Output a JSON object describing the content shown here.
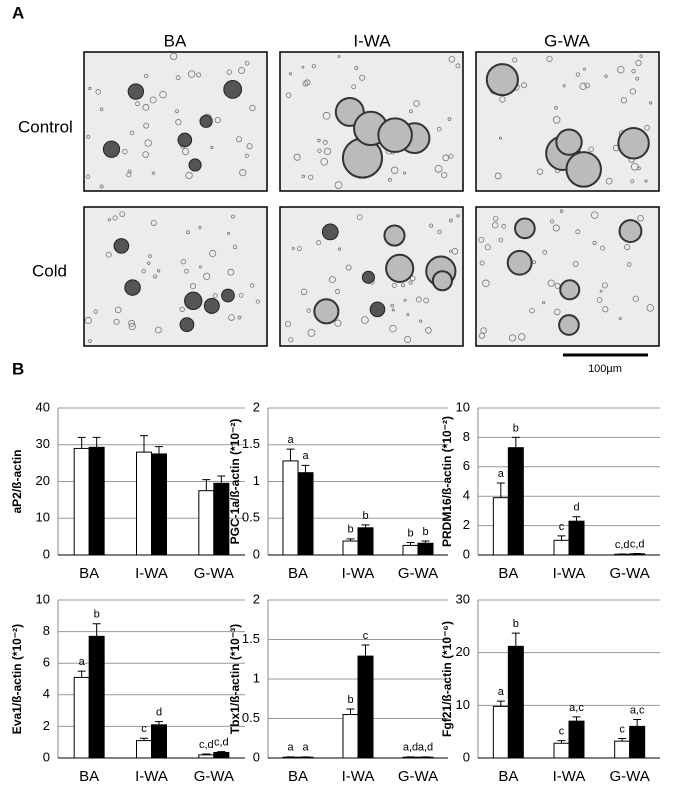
{
  "panel_a": {
    "label": "A",
    "columns": [
      "BA",
      "I-WA",
      "G-WA"
    ],
    "rows": [
      "Control",
      "Cold"
    ],
    "scale_bar": "100µm"
  },
  "panel_b": {
    "label": "B"
  },
  "chart_data": [
    {
      "type": "bar",
      "y_label": "aP2/ß-actin",
      "categories": [
        "BA",
        "I-WA",
        "G-WA"
      ],
      "ylim": [
        0,
        40
      ],
      "yticks": [
        0,
        10,
        20,
        30,
        40
      ],
      "grid": true,
      "series": [
        {
          "color": "#ffffff",
          "values": [
            29,
            28,
            17.5
          ],
          "errors": [
            3,
            4.5,
            3
          ]
        },
        {
          "color": "#000000",
          "values": [
            29.3,
            27.5,
            19.5
          ],
          "errors": [
            2.7,
            2,
            2
          ]
        }
      ]
    },
    {
      "type": "bar",
      "y_label": "PGC-1a/ß-actin (*10⁻²)",
      "categories": [
        "BA",
        "I-WA",
        "G-WA"
      ],
      "ylim": [
        0,
        2
      ],
      "yticks": [
        0,
        0.5,
        1,
        1.5,
        2
      ],
      "grid": true,
      "series": [
        {
          "color": "#ffffff",
          "values": [
            1.28,
            0.19,
            0.13
          ],
          "errors": [
            0.16,
            0.03,
            0.04
          ],
          "annotations": [
            "a",
            "b",
            "b"
          ]
        },
        {
          "color": "#000000",
          "values": [
            1.12,
            0.37,
            0.16
          ],
          "errors": [
            0.1,
            0.04,
            0.03
          ],
          "annotations": [
            "a",
            "b",
            "b"
          ]
        }
      ]
    },
    {
      "type": "bar",
      "y_label": "PRDM16/ß-actin (*10⁻²)",
      "categories": [
        "BA",
        "I-WA",
        "G-WA"
      ],
      "ylim": [
        0,
        10
      ],
      "yticks": [
        0,
        2,
        4,
        6,
        8,
        10
      ],
      "grid": true,
      "series": [
        {
          "color": "#ffffff",
          "values": [
            3.9,
            1.0,
            0.05
          ],
          "errors": [
            1.0,
            0.3,
            0.02
          ],
          "annotations": [
            "a",
            "c",
            "c,d"
          ]
        },
        {
          "color": "#000000",
          "values": [
            7.3,
            2.3,
            0.08
          ],
          "errors": [
            0.7,
            0.3,
            0.02
          ],
          "annotations": [
            "b",
            "d",
            "c,d"
          ]
        }
      ]
    },
    {
      "type": "bar",
      "y_label": "Eva1/ß-actin (*10⁻²)",
      "categories": [
        "BA",
        "I-WA",
        "G-WA"
      ],
      "ylim": [
        0,
        10
      ],
      "yticks": [
        0,
        2,
        4,
        6,
        8,
        10
      ],
      "grid": true,
      "series": [
        {
          "color": "#ffffff",
          "values": [
            5.1,
            1.1,
            0.2
          ],
          "errors": [
            0.4,
            0.15,
            0.05
          ],
          "annotations": [
            "a",
            "c",
            "c,d"
          ]
        },
        {
          "color": "#000000",
          "values": [
            7.7,
            2.1,
            0.35
          ],
          "errors": [
            0.8,
            0.2,
            0.05
          ],
          "annotations": [
            "b",
            "d",
            "c,d"
          ]
        }
      ]
    },
    {
      "type": "bar",
      "y_label": "Tbx1/ß-actin (*10⁻³)",
      "categories": [
        "BA",
        "I-WA",
        "G-WA"
      ],
      "ylim": [
        0,
        2
      ],
      "yticks": [
        0,
        0.5,
        1,
        1.5,
        2
      ],
      "grid": true,
      "series": [
        {
          "color": "#ffffff",
          "values": [
            0.01,
            0.55,
            0.01
          ],
          "errors": [
            0.005,
            0.07,
            0.005
          ],
          "annotations": [
            "a",
            "b",
            "a,d"
          ]
        },
        {
          "color": "#000000",
          "values": [
            0.01,
            1.29,
            0.01
          ],
          "errors": [
            0.005,
            0.14,
            0.005
          ],
          "annotations": [
            "a",
            "c",
            "a,d"
          ]
        }
      ]
    },
    {
      "type": "bar",
      "y_label": "Fgf21/ß-actin (*10⁻⁶)",
      "categories": [
        "BA",
        "I-WA",
        "G-WA"
      ],
      "ylim": [
        0,
        30
      ],
      "yticks": [
        0,
        10,
        20,
        30
      ],
      "grid": true,
      "series": [
        {
          "color": "#ffffff",
          "values": [
            9.8,
            2.8,
            3.2
          ],
          "errors": [
            1,
            0.5,
            0.5
          ],
          "annotations": [
            "a",
            "c",
            "c"
          ]
        },
        {
          "color": "#000000",
          "values": [
            21.2,
            7.0,
            6.0
          ],
          "errors": [
            2.5,
            0.8,
            1.3
          ],
          "annotations": [
            "b",
            "a,c",
            "a,c"
          ]
        }
      ]
    }
  ]
}
